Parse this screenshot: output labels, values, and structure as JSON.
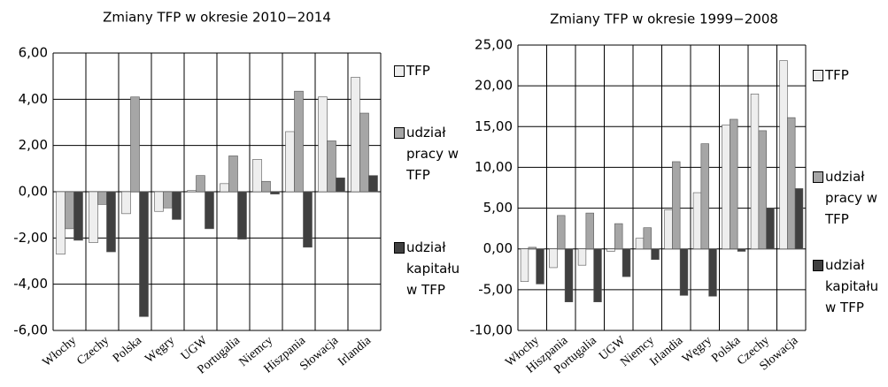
{
  "chart_data": [
    {
      "type": "bar",
      "title": "Zmiany TFP w okresie 2010−2014",
      "categories": [
        "Włochy",
        "Czechy",
        "Polska",
        "Węgry",
        "UGW",
        "Portugalia",
        "Niemcy",
        "Hiszpania",
        "Słowacja",
        "Irlandia"
      ],
      "series": [
        {
          "name": "TFP",
          "color": "#eeeeee",
          "values": [
            -2.7,
            -2.2,
            -0.95,
            -0.85,
            0.05,
            0.35,
            1.4,
            2.6,
            4.1,
            4.95
          ]
        },
        {
          "name": "udział pracy w TFP",
          "color": "#a6a6a6",
          "values": [
            -1.6,
            -0.55,
            4.1,
            -0.7,
            0.7,
            1.55,
            0.45,
            4.35,
            2.2,
            3.4
          ]
        },
        {
          "name": "udział kapitału w TFP",
          "color": "#404040",
          "values": [
            -2.1,
            -2.6,
            -5.4,
            -1.2,
            -1.6,
            -2.05,
            -0.1,
            -2.4,
            0.6,
            0.7
          ]
        }
      ],
      "ylim": [
        -6,
        6
      ],
      "yticks": [
        {
          "value": -6,
          "label": "-6,00"
        },
        {
          "value": -4,
          "label": "-4,00"
        },
        {
          "value": -2,
          "label": "-2,00"
        },
        {
          "value": 0,
          "label": "0,00"
        },
        {
          "value": 2,
          "label": "2,00"
        },
        {
          "value": 4,
          "label": "4,00"
        },
        {
          "value": 6,
          "label": "6,00"
        }
      ],
      "grid": true
    },
    {
      "type": "bar",
      "title": "Zmiany TFP w okresie 1999−2008",
      "categories": [
        "Włochy",
        "Hiszpania",
        "Portugalia",
        "UGW",
        "Niemcy",
        "Irlandia",
        "Węgry",
        "Polska",
        "Czechy",
        "Słowacja"
      ],
      "series": [
        {
          "name": "TFP",
          "color": "#eeeeee",
          "values": [
            -4,
            -2.3,
            -2,
            -0.3,
            1.3,
            4.8,
            6.9,
            15.2,
            19,
            23.1
          ]
        },
        {
          "name": "udział pracy w TFP",
          "color": "#a6a6a6",
          "values": [
            0.2,
            4.1,
            4.4,
            3.1,
            2.6,
            10.7,
            12.9,
            15.9,
            14.5,
            16.1
          ]
        },
        {
          "name": "udział kapitału w TFP",
          "color": "#404040",
          "values": [
            -4.3,
            -6.5,
            -6.5,
            -3.4,
            -1.3,
            -5.7,
            -5.8,
            -0.3,
            5,
            7.4
          ]
        }
      ],
      "ylim": [
        -10,
        25
      ],
      "yticks": [
        {
          "value": -10,
          "label": "-10,00"
        },
        {
          "value": -5,
          "label": "-5,00"
        },
        {
          "value": 0,
          "label": "0,00"
        },
        {
          "value": 5,
          "label": "5,00"
        },
        {
          "value": 10,
          "label": "10,00"
        },
        {
          "value": 15,
          "label": "15,00"
        },
        {
          "value": 20,
          "label": "20,00"
        },
        {
          "value": 25,
          "label": "25,00"
        }
      ],
      "grid": true
    }
  ]
}
